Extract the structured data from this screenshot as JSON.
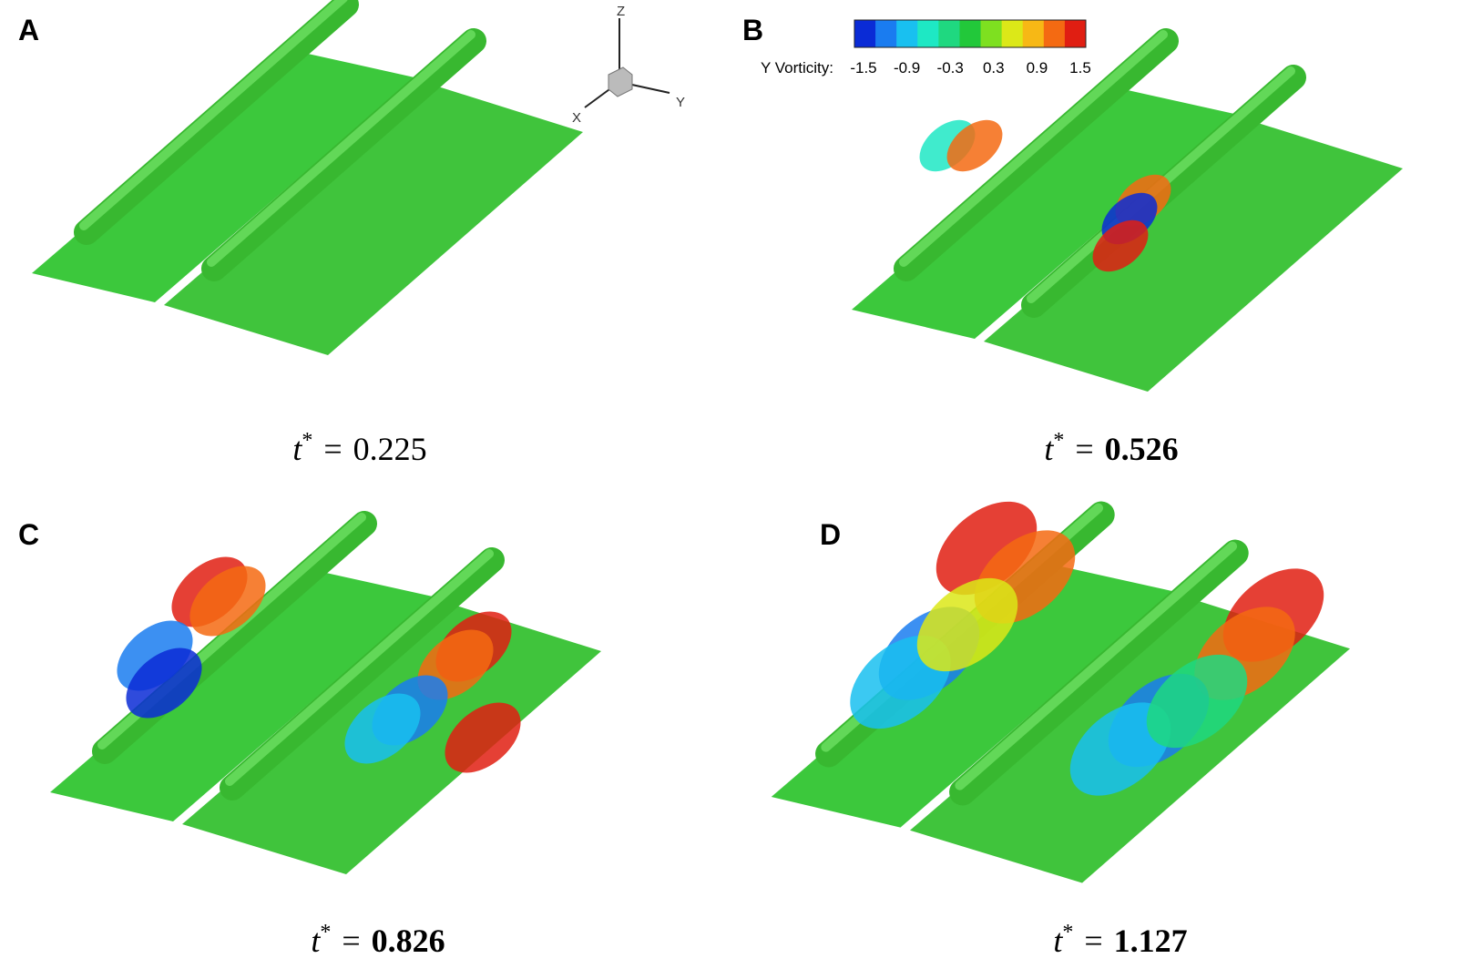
{
  "panels": [
    {
      "label": "A",
      "caption": {
        "symbol": "t",
        "sup": "*",
        "relation": "=",
        "value": "0.225"
      }
    },
    {
      "label": "B",
      "caption": {
        "symbol": "t",
        "sup": "*",
        "relation": "=",
        "value": "0.526"
      }
    },
    {
      "label": "C",
      "caption": {
        "symbol": "t",
        "sup": "*",
        "relation": "=",
        "value": "0.826"
      }
    },
    {
      "label": "D",
      "caption": {
        "symbol": "t",
        "sup": "*",
        "relation": "=",
        "value": "1.127"
      }
    }
  ],
  "axes_triad": {
    "z": "Z",
    "y": "Y",
    "x": "X"
  },
  "colorbar": {
    "title": "Y Vorticity:",
    "ticks": [
      "-1.5",
      "-0.9",
      "-0.3",
      "0.3",
      "0.9",
      "1.5"
    ],
    "colors": [
      "#0a2bd6",
      "#1a7cf0",
      "#19c0f0",
      "#1ee8c4",
      "#1fd880",
      "#22c83a",
      "#7ee020",
      "#dce818",
      "#f7b815",
      "#f46a12",
      "#e01e12"
    ]
  }
}
